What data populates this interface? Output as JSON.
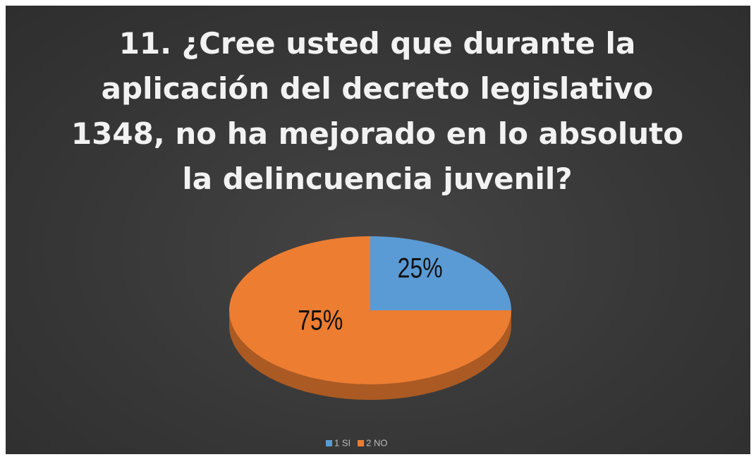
{
  "chart_data": {
    "type": "pie",
    "title": "11. ¿Cree usted que durante la aplicación del decreto legislativo 1348, no ha mejorado en lo absoluto la delincuencia juvenil?",
    "categories": [
      "1 SI",
      "2 NO"
    ],
    "values": [
      25,
      75
    ],
    "value_labels": [
      "25%",
      "75%"
    ],
    "colors": [
      "#5b9bd5",
      "#ed7d31"
    ],
    "legend": "bottom"
  }
}
